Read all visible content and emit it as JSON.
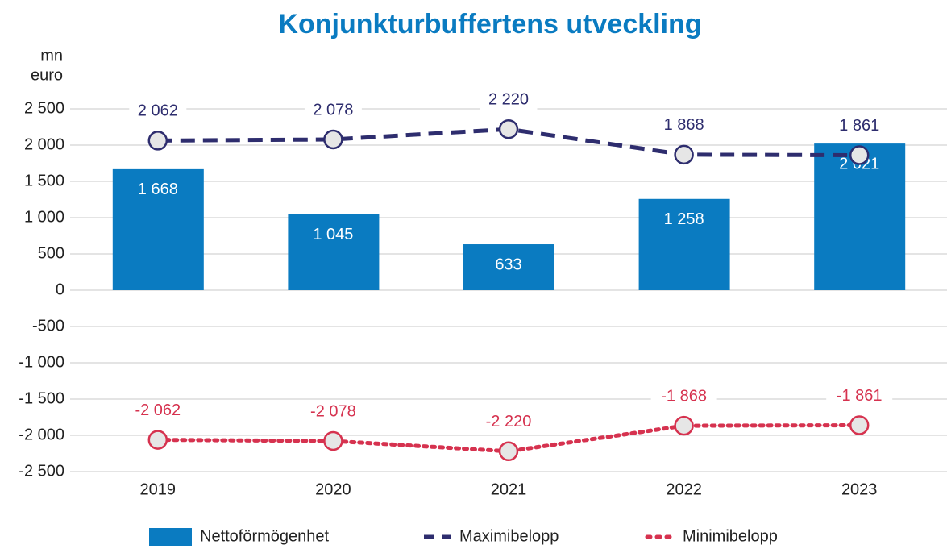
{
  "chart_data": {
    "type": "bar",
    "title": "Konjunkturbuffertens utveckling",
    "ylabel": [
      "mn",
      "euro"
    ],
    "categories": [
      "2019",
      "2020",
      "2021",
      "2022",
      "2023"
    ],
    "ylim": [
      -2500,
      2500
    ],
    "yticks": [
      {
        "value": 2500,
        "label": "2 500"
      },
      {
        "value": 2000,
        "label": "2 000"
      },
      {
        "value": 1500,
        "label": "1 500"
      },
      {
        "value": 1000,
        "label": "1 000"
      },
      500,
      0,
      -500,
      {
        "value": -1000,
        "label": "-1 000"
      },
      {
        "value": -1500,
        "label": "-1 500"
      },
      {
        "value": -2000,
        "label": "-2 000"
      },
      {
        "value": -2500,
        "label": "-2 500"
      }
    ],
    "grid": true,
    "legend": "bottom",
    "series": [
      {
        "name": "Nettoförmögenhet",
        "type": "bar",
        "color": "#0a7bc1",
        "values": [
          1668,
          1045,
          633,
          1258,
          2021
        ],
        "value_labels": [
          "1 668",
          "1 045",
          "633",
          "1 258",
          "2 021"
        ]
      },
      {
        "name": "Maximibelopp",
        "type": "line",
        "line_style": "dashed",
        "color": "#2e2d6e",
        "values": [
          2062,
          2078,
          2220,
          1868,
          1861
        ],
        "value_labels": [
          "2 062",
          "2 078",
          "2 220",
          "1 868",
          "1 861"
        ]
      },
      {
        "name": "Minimibelopp",
        "type": "line",
        "line_style": "dotted",
        "color": "#d6324f",
        "values": [
          -2062,
          -2078,
          -2220,
          -1868,
          -1861
        ],
        "value_labels": [
          "-2 062",
          "-2 078",
          "-2 220",
          "-1 868",
          "-1 861"
        ]
      }
    ]
  }
}
